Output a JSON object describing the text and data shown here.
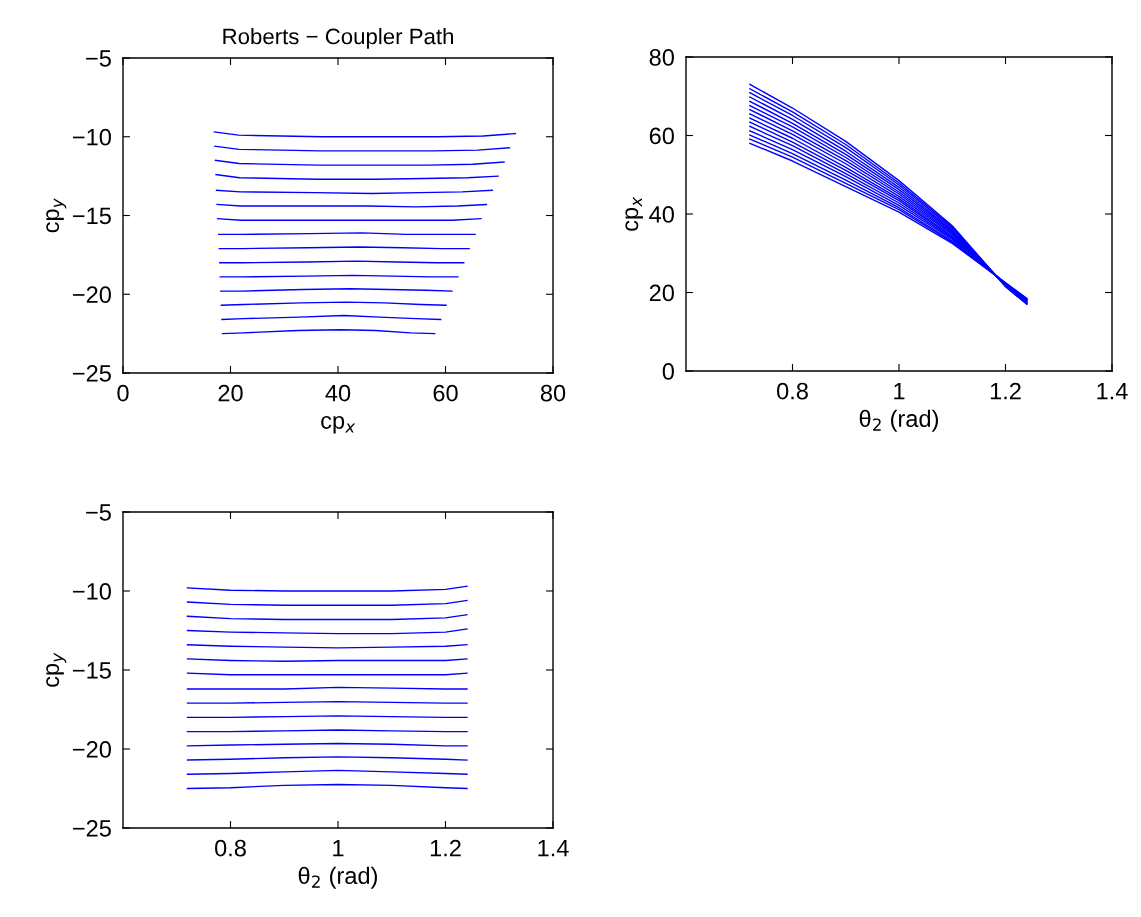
{
  "chart_data": [
    {
      "type": "line",
      "title": "Roberts − Coupler Path",
      "xlabel": "cp$_{x}$",
      "ylabel": "cp$_{y}$",
      "xlim": [
        0,
        80
      ],
      "xticks": [
        0,
        20,
        40,
        60,
        80
      ],
      "ylim": [
        -25,
        -5
      ],
      "yticks": [
        -25,
        -20,
        -15,
        -10,
        -5
      ],
      "grid": false,
      "series": [
        {
          "color": "#0000ff",
          "x": [
            73,
            67,
            58.5,
            48.5,
            37,
            21.5,
            17
          ],
          "values": [
            -9.8,
            -9.95,
            -10.0,
            -10.0,
            -10.0,
            -9.9,
            -9.7
          ]
        },
        {
          "color": "#0000ff",
          "x": [
            71.9,
            66.0,
            57.7,
            47.9,
            36.7,
            21.6,
            17.1
          ],
          "values": [
            -10.7,
            -10.85,
            -10.9,
            -10.9,
            -10.9,
            -10.8,
            -10.6
          ]
        },
        {
          "color": "#0000ff",
          "x": [
            70.9,
            65.1,
            56.9,
            47.4,
            36.4,
            21.6,
            17.2
          ],
          "values": [
            -11.6,
            -11.75,
            -11.8,
            -11.8,
            -11.8,
            -11.7,
            -11.5
          ]
        },
        {
          "color": "#0000ff",
          "x": [
            69.8,
            64.1,
            56.0,
            46.8,
            36.0,
            21.7,
            17.3
          ],
          "values": [
            -12.5,
            -12.6,
            -12.65,
            -12.7,
            -12.7,
            -12.6,
            -12.4
          ]
        },
        {
          "color": "#0000ff",
          "x": [
            68.7,
            63.1,
            55.2,
            46.2,
            35.7,
            21.8,
            17.4
          ],
          "values": [
            -13.4,
            -13.5,
            -13.55,
            -13.6,
            -13.55,
            -13.5,
            -13.4
          ]
        },
        {
          "color": "#0000ff",
          "x": [
            67.6,
            62.2,
            54.4,
            45.6,
            35.4,
            21.9,
            17.5
          ],
          "values": [
            -14.3,
            -14.4,
            -14.45,
            -14.4,
            -14.4,
            -14.4,
            -14.3
          ]
        },
        {
          "color": "#0000ff",
          "x": [
            66.6,
            61.2,
            53.6,
            45.1,
            35.1,
            21.9,
            17.6
          ],
          "values": [
            -15.2,
            -15.3,
            -15.3,
            -15.3,
            -15.3,
            -15.3,
            -15.2
          ]
        },
        {
          "color": "#0000ff",
          "x": [
            65.5,
            60.3,
            52.8,
            44.5,
            34.8,
            22.0,
            17.8
          ],
          "values": [
            -16.2,
            -16.2,
            -16.2,
            -16.1,
            -16.15,
            -16.2,
            -16.2
          ]
        },
        {
          "color": "#0000ff",
          "x": [
            64.4,
            59.3,
            51.9,
            43.9,
            34.4,
            22.1,
            17.9
          ],
          "values": [
            -17.1,
            -17.1,
            -17.05,
            -17.0,
            -17.05,
            -17.1,
            -17.1
          ]
        },
        {
          "color": "#0000ff",
          "x": [
            63.4,
            58.3,
            51.1,
            43.4,
            34.1,
            22.1,
            18.0
          ],
          "values": [
            -18.0,
            -18.0,
            -17.95,
            -17.9,
            -17.95,
            -18.0,
            -18.0
          ]
        },
        {
          "color": "#0000ff",
          "x": [
            62.3,
            57.4,
            50.3,
            42.8,
            33.8,
            22.2,
            18.1
          ],
          "values": [
            -18.9,
            -18.9,
            -18.85,
            -18.8,
            -18.85,
            -18.9,
            -18.9
          ]
        },
        {
          "color": "#0000ff",
          "x": [
            61.2,
            56.4,
            49.5,
            42.2,
            33.5,
            22.3,
            18.2
          ],
          "values": [
            -19.8,
            -19.75,
            -19.7,
            -19.65,
            -19.7,
            -19.8,
            -19.8
          ]
        },
        {
          "color": "#0000ff",
          "x": [
            60.1,
            55.4,
            48.6,
            41.6,
            33.1,
            22.4,
            18.3
          ],
          "values": [
            -20.7,
            -20.65,
            -20.55,
            -20.5,
            -20.55,
            -20.65,
            -20.7
          ]
        },
        {
          "color": "#0000ff",
          "x": [
            59.1,
            54.5,
            47.8,
            41.1,
            32.8,
            22.4,
            18.4
          ],
          "values": [
            -21.6,
            -21.55,
            -21.45,
            -21.35,
            -21.45,
            -21.55,
            -21.6
          ]
        },
        {
          "color": "#0000ff",
          "x": [
            58,
            53.5,
            47,
            40.5,
            32.5,
            22.5,
            18.5
          ],
          "values": [
            -22.5,
            -22.45,
            -22.3,
            -22.25,
            -22.3,
            -22.45,
            -22.5
          ]
        }
      ]
    },
    {
      "type": "line",
      "xlabel": "θ$_{2}$ (rad)",
      "ylabel": "cp$_{x}$",
      "xlim": [
        0.6,
        1.4
      ],
      "xticks": [
        0.8,
        1,
        1.2,
        1.4
      ],
      "ylim": [
        0,
        80
      ],
      "yticks": [
        0,
        20,
        40,
        60,
        80
      ],
      "grid": false,
      "x": [
        0.72,
        0.8,
        0.9,
        1.0,
        1.1,
        1.2,
        1.24
      ],
      "series": [
        {
          "color": "#0000ff",
          "values": [
            73,
            67,
            58.5,
            48.5,
            37,
            21.5,
            17
          ]
        },
        {
          "color": "#0000ff",
          "values": [
            71.9,
            66.0,
            57.7,
            47.9,
            36.7,
            21.6,
            17.1
          ]
        },
        {
          "color": "#0000ff",
          "values": [
            70.9,
            65.1,
            56.9,
            47.4,
            36.4,
            21.6,
            17.2
          ]
        },
        {
          "color": "#0000ff",
          "values": [
            69.8,
            64.1,
            56.0,
            46.8,
            36.0,
            21.7,
            17.3
          ]
        },
        {
          "color": "#0000ff",
          "values": [
            68.7,
            63.1,
            55.2,
            46.2,
            35.7,
            21.8,
            17.4
          ]
        },
        {
          "color": "#0000ff",
          "values": [
            67.6,
            62.2,
            54.4,
            45.6,
            35.4,
            21.9,
            17.5
          ]
        },
        {
          "color": "#0000ff",
          "values": [
            66.6,
            61.2,
            53.6,
            45.1,
            35.1,
            21.9,
            17.6
          ]
        },
        {
          "color": "#0000ff",
          "values": [
            65.5,
            60.3,
            52.8,
            44.5,
            34.8,
            22.0,
            17.8
          ]
        },
        {
          "color": "#0000ff",
          "values": [
            64.4,
            59.3,
            51.9,
            43.9,
            34.4,
            22.1,
            17.9
          ]
        },
        {
          "color": "#0000ff",
          "values": [
            63.4,
            58.3,
            51.1,
            43.4,
            34.1,
            22.1,
            18.0
          ]
        },
        {
          "color": "#0000ff",
          "values": [
            62.3,
            57.4,
            50.3,
            42.8,
            33.8,
            22.2,
            18.1
          ]
        },
        {
          "color": "#0000ff",
          "values": [
            61.2,
            56.4,
            49.5,
            42.2,
            33.5,
            22.3,
            18.2
          ]
        },
        {
          "color": "#0000ff",
          "values": [
            60.1,
            55.4,
            48.6,
            41.6,
            33.1,
            22.4,
            18.3
          ]
        },
        {
          "color": "#0000ff",
          "values": [
            59.1,
            54.5,
            47.8,
            41.1,
            32.8,
            22.4,
            18.4
          ]
        },
        {
          "color": "#0000ff",
          "values": [
            58,
            53.5,
            47,
            40.5,
            32.5,
            22.5,
            18.5
          ]
        }
      ]
    },
    {
      "type": "line",
      "xlabel": "θ$_{2}$ (rad)",
      "ylabel": "cp$_{y}$",
      "xlim": [
        0.6,
        1.4
      ],
      "xticks": [
        0.8,
        1,
        1.2,
        1.4
      ],
      "ylim": [
        -25,
        -5
      ],
      "yticks": [
        -25,
        -20,
        -15,
        -10,
        -5
      ],
      "grid": false,
      "x": [
        0.72,
        0.8,
        0.9,
        1.0,
        1.1,
        1.2,
        1.24
      ],
      "series": [
        {
          "color": "#0000ff",
          "values": [
            -9.8,
            -9.95,
            -10.0,
            -10.0,
            -10.0,
            -9.9,
            -9.7
          ]
        },
        {
          "color": "#0000ff",
          "values": [
            -10.7,
            -10.85,
            -10.9,
            -10.9,
            -10.9,
            -10.8,
            -10.6
          ]
        },
        {
          "color": "#0000ff",
          "values": [
            -11.6,
            -11.75,
            -11.8,
            -11.8,
            -11.8,
            -11.7,
            -11.5
          ]
        },
        {
          "color": "#0000ff",
          "values": [
            -12.5,
            -12.6,
            -12.65,
            -12.7,
            -12.7,
            -12.6,
            -12.4
          ]
        },
        {
          "color": "#0000ff",
          "values": [
            -13.4,
            -13.5,
            -13.55,
            -13.6,
            -13.55,
            -13.5,
            -13.4
          ]
        },
        {
          "color": "#0000ff",
          "values": [
            -14.3,
            -14.4,
            -14.45,
            -14.4,
            -14.4,
            -14.4,
            -14.3
          ]
        },
        {
          "color": "#0000ff",
          "values": [
            -15.2,
            -15.3,
            -15.3,
            -15.3,
            -15.3,
            -15.3,
            -15.2
          ]
        },
        {
          "color": "#0000ff",
          "values": [
            -16.2,
            -16.2,
            -16.2,
            -16.1,
            -16.15,
            -16.2,
            -16.2
          ]
        },
        {
          "color": "#0000ff",
          "values": [
            -17.1,
            -17.1,
            -17.05,
            -17.0,
            -17.05,
            -17.1,
            -17.1
          ]
        },
        {
          "color": "#0000ff",
          "values": [
            -18.0,
            -18.0,
            -17.95,
            -17.9,
            -17.95,
            -18.0,
            -18.0
          ]
        },
        {
          "color": "#0000ff",
          "values": [
            -18.9,
            -18.9,
            -18.85,
            -18.8,
            -18.85,
            -18.9,
            -18.9
          ]
        },
        {
          "color": "#0000ff",
          "values": [
            -19.8,
            -19.75,
            -19.7,
            -19.65,
            -19.7,
            -19.8,
            -19.8
          ]
        },
        {
          "color": "#0000ff",
          "values": [
            -20.7,
            -20.65,
            -20.55,
            -20.5,
            -20.55,
            -20.65,
            -20.7
          ]
        },
        {
          "color": "#0000ff",
          "values": [
            -21.6,
            -21.55,
            -21.45,
            -21.35,
            -21.45,
            -21.55,
            -21.6
          ]
        },
        {
          "color": "#0000ff",
          "values": [
            -22.5,
            -22.45,
            -22.3,
            -22.25,
            -22.3,
            -22.45,
            -22.5
          ]
        }
      ]
    }
  ]
}
